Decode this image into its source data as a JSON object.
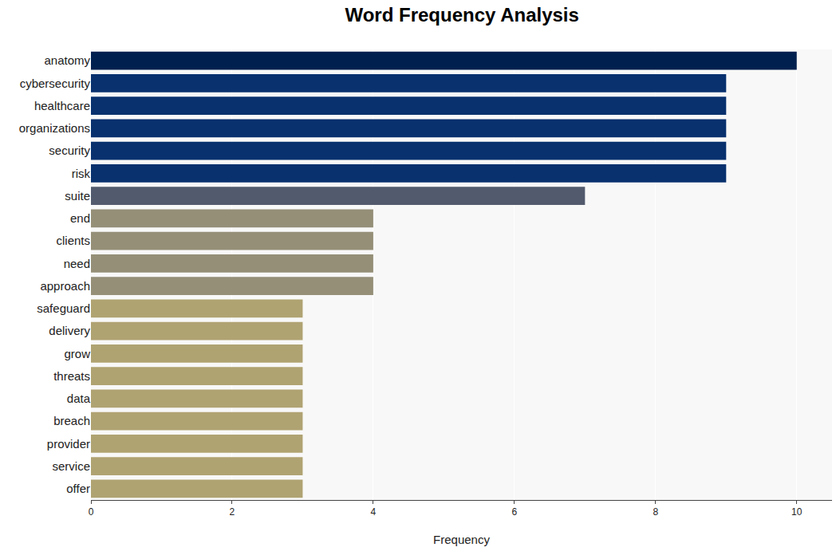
{
  "chart_data": {
    "type": "bar",
    "orientation": "horizontal",
    "title": "Word Frequency Analysis",
    "x_label": "Frequency",
    "categories": [
      "anatomy",
      "cybersecurity",
      "healthcare",
      "organizations",
      "security",
      "risk",
      "suite",
      "end",
      "clients",
      "need",
      "approach",
      "safeguard",
      "delivery",
      "grow",
      "threats",
      "data",
      "breach",
      "provider",
      "service",
      "offer"
    ],
    "values": [
      10,
      9,
      9,
      9,
      9,
      9,
      7,
      4,
      4,
      4,
      4,
      3,
      3,
      3,
      3,
      3,
      3,
      3,
      3,
      3
    ],
    "colors": [
      "#00204f",
      "#08316e",
      "#08316e",
      "#08316e",
      "#08316e",
      "#08316e",
      "#525a6e",
      "#958f78",
      "#958f78",
      "#958f78",
      "#958f78",
      "#b0a372",
      "#b0a372",
      "#b0a372",
      "#b0a372",
      "#b0a372",
      "#b0a372",
      "#b0a372",
      "#b0a372",
      "#b0a372"
    ],
    "xlim": [
      0,
      10.5
    ],
    "xticks": [
      0,
      2,
      4,
      6,
      8,
      10
    ],
    "grid": true
  }
}
